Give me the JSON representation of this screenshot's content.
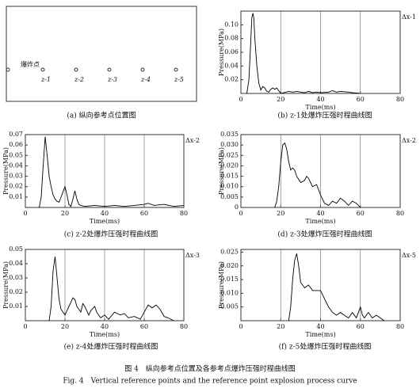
{
  "diagram": {
    "caption": "(a) 纵向参考点位置图",
    "source_label": "爆炸点",
    "points": [
      "z-1",
      "z-2",
      "z-3",
      "z-4",
      "z-5"
    ]
  },
  "chart_data": [
    {
      "type": "line",
      "caption": "(b) z-1处爆炸压强时程曲线图",
      "annotation": "Δx-1",
      "xlabel": "Time(ms)",
      "ylabel": "Pressure(MPa)",
      "color": "#000000",
      "grid": "x",
      "xlim": [
        0,
        80
      ],
      "xticks": [
        0,
        20,
        40,
        60,
        80
      ],
      "ylim": [
        0,
        0.12
      ],
      "yticks": [
        0.02,
        0.04,
        0.06,
        0.08,
        {
          "value": 0.1,
          "label": "0.10"
        }
      ],
      "x": [
        3,
        4,
        5,
        5.5,
        6,
        6.5,
        7,
        8,
        9,
        10,
        11,
        12,
        13,
        14,
        15,
        16,
        17,
        18,
        19,
        20,
        24,
        26,
        28,
        30,
        32,
        34,
        36,
        38,
        40,
        44,
        46,
        48,
        50,
        54,
        56,
        60
      ],
      "values": [
        0,
        0.02,
        0.08,
        0.11,
        0.117,
        0.11,
        0.08,
        0.04,
        0.015,
        0.005,
        0.01,
        0.008,
        0.003,
        0.002,
        0.006,
        0.008,
        0.006,
        0.008,
        0.004,
        0,
        0.003,
        0.002,
        0.003,
        0.002,
        0.001,
        0.003,
        0.001,
        0.002,
        0.001,
        0.002,
        0.004,
        0.002,
        0.003,
        0.002,
        0.001,
        0
      ]
    },
    {
      "type": "line",
      "caption": "(c) z-2处爆炸压强时程曲线图",
      "annotation": "Δx-2",
      "xlabel": "Time(ms)",
      "ylabel": "Pressure(MPa)",
      "color": "#000000",
      "grid": "x",
      "xlim": [
        0,
        80
      ],
      "xticks": [
        0,
        20,
        40,
        60,
        80
      ],
      "ylim": [
        0,
        0.07
      ],
      "yticks": [
        0.01,
        0.02,
        0.03,
        0.04,
        0.05,
        0.06,
        0.07
      ],
      "x": [
        7,
        8,
        9,
        10,
        11,
        12,
        13,
        14,
        15,
        16,
        17,
        18,
        19,
        20,
        21,
        22,
        23,
        24,
        25,
        26,
        27,
        28,
        30,
        35,
        40,
        45,
        50,
        55,
        60,
        62,
        65,
        70,
        75,
        80
      ],
      "values": [
        0,
        0.01,
        0.04,
        0.068,
        0.05,
        0.03,
        0.02,
        0.012,
        0.008,
        0.006,
        0.005,
        0.01,
        0.015,
        0.02,
        0.012,
        0.003,
        0.001,
        0.008,
        0.016,
        0.008,
        0.003,
        0.002,
        0.001,
        0.002,
        0.001,
        0.002,
        0.001,
        0.002,
        0.003,
        0.004,
        0.002,
        0.003,
        0.001,
        0.002
      ]
    },
    {
      "type": "line",
      "caption": "(d) z-3处爆炸压强时程曲线图",
      "annotation": "Δx-2",
      "xlabel": "Time(ms)",
      "ylabel": "Pressure(MPa)",
      "color": "#000000",
      "grid": "x",
      "xlim": [
        0,
        80
      ],
      "xticks": [
        0,
        20,
        40,
        60,
        80
      ],
      "ylim": [
        0,
        0.035
      ],
      "yticks": [
        0,
        0.005,
        {
          "value": 0.01,
          "label": "0.010"
        },
        0.015,
        {
          "value": 0.02,
          "label": "0.020"
        },
        0.025,
        {
          "value": 0.03,
          "label": "0.030"
        },
        0.035
      ],
      "x": [
        17,
        18,
        19,
        20,
        21,
        22,
        23,
        24,
        25,
        26,
        27,
        28,
        30,
        32,
        33,
        34,
        35,
        36,
        38,
        40,
        42,
        44,
        46,
        48,
        50,
        52,
        54,
        56,
        58,
        60
      ],
      "values": [
        0,
        0.003,
        0.01,
        0.022,
        0.03,
        0.031,
        0.028,
        0.022,
        0.018,
        0.019,
        0.018,
        0.015,
        0.012,
        0.013,
        0.015,
        0.014,
        0.012,
        0.01,
        0.011,
        0.006,
        0.002,
        0.001,
        0.003,
        0.002,
        0.0045,
        0.003,
        0.001,
        0.003,
        0.002,
        0
      ]
    },
    {
      "type": "line",
      "caption": "(e) z-4处爆炸压强时程曲线图",
      "annotation": "Δx-3",
      "xlabel": "Time(ms)",
      "ylabel": "Pressure(MPa)",
      "color": "#000000",
      "grid": "x",
      "xlim": [
        0,
        80
      ],
      "xticks": [
        0,
        20,
        40,
        60,
        80
      ],
      "ylim": [
        0,
        0.05
      ],
      "yticks": [
        0.01,
        0.02,
        0.03,
        0.04,
        0.05
      ],
      "x": [
        12,
        13,
        14,
        15,
        16,
        17,
        18,
        20,
        22,
        24,
        25,
        26,
        28,
        29,
        30,
        32,
        33,
        35,
        36,
        38,
        40,
        42,
        45,
        48,
        50,
        52,
        55,
        58,
        60,
        62,
        64,
        66,
        68,
        70,
        72,
        75
      ],
      "values": [
        0,
        0.01,
        0.035,
        0.045,
        0.03,
        0.015,
        0.008,
        0.004,
        0.01,
        0.016,
        0.015,
        0.01,
        0.006,
        0.012,
        0.01,
        0.004,
        0.007,
        0.01,
        0.006,
        0.002,
        0.004,
        0.001,
        0.006,
        0.004,
        0.005,
        0.002,
        0.003,
        0.001,
        0.006,
        0.011,
        0.009,
        0.011,
        0.008,
        0.003,
        0.002,
        0
      ]
    },
    {
      "type": "line",
      "caption": "(f) z-5处爆炸压强时程曲线图",
      "annotation": "Δx-5",
      "xlabel": "Time(ms)",
      "ylabel": "Pressure(MPa)",
      "color": "#000000",
      "grid": "x",
      "xlim": [
        0,
        80
      ],
      "xticks": [
        0,
        20,
        40,
        60,
        80
      ],
      "ylim": [
        0,
        0.026
      ],
      "yticks": [
        0.005,
        {
          "value": 0.01,
          "label": "0.010"
        },
        0.015,
        {
          "value": 0.02,
          "label": "0.020"
        },
        0.025
      ],
      "x": [
        24,
        25,
        26,
        27,
        28,
        29,
        30,
        31,
        32,
        34,
        36,
        38,
        40,
        42,
        44,
        46,
        48,
        50,
        52,
        54,
        56,
        58,
        60,
        61,
        62,
        64,
        66,
        68,
        70,
        72
      ],
      "values": [
        0,
        0.005,
        0.015,
        0.022,
        0.0245,
        0.02,
        0.014,
        0.013,
        0.012,
        0.013,
        0.011,
        0.011,
        0.011,
        0.008,
        0.005,
        0.003,
        0.002,
        0.003,
        0.002,
        0.001,
        0.003,
        0.001,
        0.005,
        0.002,
        0.001,
        0.003,
        0.001,
        0.002,
        0.001,
        0
      ]
    }
  ],
  "figure": {
    "caption_cn": "图 4　纵向参考点位置及各参考点爆炸压强时程曲线图",
    "caption_en": "Fig. 4　Vertical reference points and the reference point explosion process curve"
  }
}
